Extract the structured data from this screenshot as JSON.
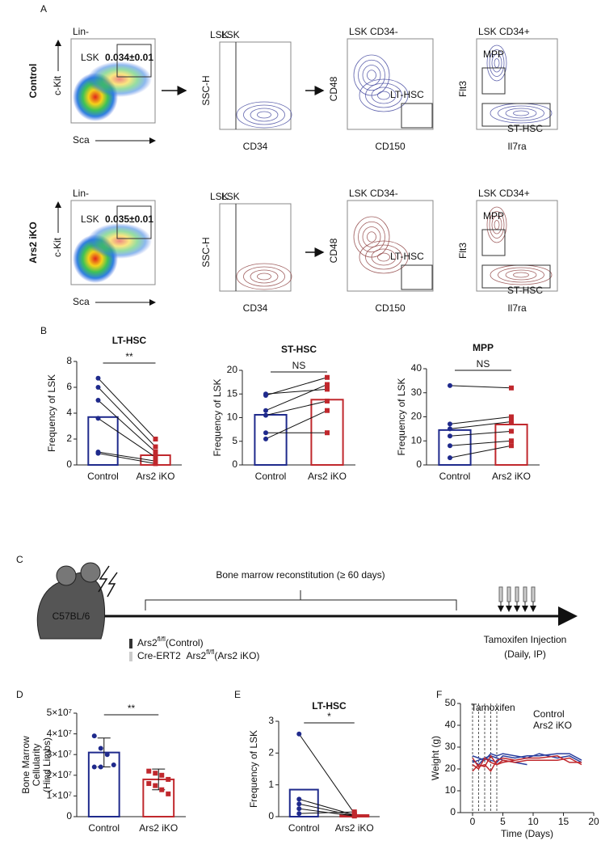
{
  "panel_labels": [
    "A",
    "B",
    "C",
    "D",
    "E",
    "F"
  ],
  "flow": {
    "rows": [
      {
        "label": "Control",
        "plots": [
          {
            "title": "Lin-",
            "gates": [
              "LSK"
            ],
            "frequency": "0.034±0.01",
            "x_label": "Sca",
            "y_label": "c-Kit"
          },
          {
            "title": "LSK",
            "gates": [],
            "x_label": "CD34",
            "y_label": "SSC-H"
          },
          {
            "title": "LSK CD34-",
            "gates": [
              "LT-HSC"
            ],
            "x_label": "CD150",
            "y_label": "CD48"
          },
          {
            "title": "LSK CD34+",
            "gates": [
              "MPP",
              "ST-HSC"
            ],
            "x_label": "Il7ra",
            "y_label": "Flt3"
          }
        ]
      },
      {
        "label": "Ars2 iKO",
        "plots": [
          {
            "title": "Lin-",
            "gates": [
              "LSK"
            ],
            "frequency": "0.035±0.01",
            "x_label": "Sca",
            "y_label": "c-Kit"
          },
          {
            "title": "LSK",
            "gates": [],
            "x_label": "CD34",
            "y_label": "SSC-H"
          },
          {
            "title": "LSK CD34-",
            "gates": [
              "LT-HSC"
            ],
            "x_label": "CD150",
            "y_label": "CD48"
          },
          {
            "title": "LSK CD34+",
            "gates": [
              "MPP",
              "ST-HSC"
            ],
            "x_label": "Il7ra",
            "y_label": "Flt3"
          }
        ]
      }
    ]
  },
  "schematic": {
    "mouse": "C57BL/6",
    "period": "Bone marrow reconstitution (≥ 60 days)",
    "groups": [
      {
        "gene": "Ars2",
        "allele": "fl/fl",
        "label": "(Control)"
      },
      {
        "prefix": "Cre-ERT2",
        "gene": "Ars2",
        "allele": "fl/fl",
        "label": "(Ars2 iKO)"
      }
    ],
    "treatment": [
      "Tamoxifen Injection",
      "(Daily, IP)"
    ]
  },
  "chart_data": [
    {
      "type": "bar",
      "title": "LT-HSC",
      "y_label": [
        "Frequency of LSK"
      ],
      "categories": [
        "Control",
        "Ars2 iKO"
      ],
      "colors": [
        "#1f2a8c",
        "#c0282d"
      ],
      "values": [
        3.7,
        0.75
      ],
      "points": [
        [
          6.7,
          6.0,
          5.0,
          3.6,
          1.0,
          0.9
        ],
        [
          2.0,
          1.4,
          1.0,
          0.6,
          0.3,
          0.1
        ]
      ],
      "paired": true,
      "annotation": "**",
      "ylim": [
        0,
        8
      ],
      "yticks": [
        0,
        2,
        4,
        6,
        8
      ]
    },
    {
      "type": "bar",
      "title": "ST-HSC",
      "y_label": [
        "Frequency of LSK"
      ],
      "categories": [
        "Control",
        "Ars2 iKO"
      ],
      "colors": [
        "#1f2a8c",
        "#c0282d"
      ],
      "values": [
        10.6,
        13.8
      ],
      "points": [
        [
          15.0,
          14.7,
          11.5,
          10.5,
          6.8,
          5.5
        ],
        [
          16.0,
          18.5,
          17.0,
          13.5,
          6.8,
          11.5
        ]
      ],
      "paired": true,
      "annotation": "NS",
      "ylim": [
        0,
        20
      ],
      "yticks": [
        0,
        5,
        10,
        15,
        20
      ]
    },
    {
      "type": "bar",
      "title": "MPP",
      "y_label": [
        "Frequency of LSK"
      ],
      "categories": [
        "Control",
        "Ars2 iKO"
      ],
      "colors": [
        "#1f2a8c",
        "#c0282d"
      ],
      "values": [
        14.5,
        16.8
      ],
      "points": [
        [
          33,
          17,
          15,
          12,
          8,
          3
        ],
        [
          32,
          20,
          18,
          14,
          10,
          8
        ]
      ],
      "paired": true,
      "annotation": "NS",
      "ylim": [
        0,
        40
      ],
      "yticks": [
        0,
        10,
        20,
        30,
        40
      ]
    },
    {
      "type": "bar",
      "y_label": [
        "Bone Marrow",
        "Cellularity",
        "(Hind Limbs)"
      ],
      "categories": [
        "Control",
        "Ars2 iKO"
      ],
      "colors": [
        "#1f2a8c",
        "#c0282d"
      ],
      "values": [
        31000000,
        18000000
      ],
      "errors": [
        7000000,
        5000000
      ],
      "points": [
        [
          39000000,
          33000000,
          30000000,
          25000000,
          24000000,
          24000000
        ],
        [
          22000000,
          21000000,
          20000000,
          18000000,
          16000000,
          15000000,
          13000000,
          11000000
        ]
      ],
      "paired": false,
      "annotation": "**",
      "ylim": [
        0,
        50000000
      ],
      "yticks": [
        {
          "value": 0,
          "label": "0"
        },
        {
          "value": 10000000,
          "label": "1×10⁷"
        },
        {
          "value": 20000000,
          "label": "2×10⁷"
        },
        {
          "value": 30000000,
          "label": "3×10⁷"
        },
        {
          "value": 40000000,
          "label": "4×10⁷"
        },
        {
          "value": 50000000,
          "label": "5×10⁷"
        }
      ]
    },
    {
      "type": "bar",
      "title": "LT-HSC",
      "y_label": [
        "Frequency of LSK"
      ],
      "categories": [
        "Control",
        "Ars2 iKO"
      ],
      "colors": [
        "#1f2a8c",
        "#c0282d"
      ],
      "values": [
        0.85,
        0.05
      ],
      "points": [
        [
          2.6,
          0.55,
          0.4,
          0.25,
          0.1
        ],
        [
          0.1,
          0.05,
          0.03,
          0.02,
          0.15
        ]
      ],
      "paired": true,
      "annotation": "*",
      "ylim": [
        0,
        3
      ],
      "yticks": [
        0,
        1,
        2,
        3
      ]
    },
    {
      "type": "line",
      "x_label": "Time (Days)",
      "y_label": [
        "Weight (g)"
      ],
      "xlim": [
        -2,
        20
      ],
      "xticks": [
        0,
        5,
        10,
        15,
        20
      ],
      "ylim": [
        0,
        50
      ],
      "yticks": [
        0,
        10,
        20,
        30,
        40,
        50
      ],
      "markers": {
        "label": "Tamoxifen",
        "x": [
          0,
          1,
          2,
          3,
          4
        ]
      },
      "series": [
        {
          "name": "Control",
          "color": "#2b3f9e",
          "lines": [
            {
              "x": [
                0,
                1,
                2,
                3,
                4,
                5,
                7,
                9,
                11,
                14,
                16,
                18
              ],
              "values": [
                24,
                22,
                25,
                24,
                23,
                26,
                25,
                26,
                26,
                27,
                27,
                24
              ]
            },
            {
              "x": [
                0,
                1,
                2,
                3,
                4,
                5,
                7,
                9,
                11,
                14,
                16,
                18
              ],
              "values": [
                26,
                25,
                24,
                27,
                26,
                27,
                26,
                25,
                27,
                25,
                26,
                23
              ]
            },
            {
              "x": [
                0,
                1,
                2,
                3,
                4,
                5,
                7,
                9
              ],
              "values": [
                23,
                24,
                25,
                26,
                25,
                24,
                23,
                22
              ]
            }
          ]
        },
        {
          "name": "Ars2 iKO",
          "color": "#c0282d",
          "lines": [
            {
              "x": [
                0,
                1,
                2,
                3,
                4,
                5,
                7,
                9,
                11,
                14,
                16,
                18
              ],
              "values": [
                25,
                21,
                22,
                19,
                24,
                25,
                24,
                25,
                25,
                26,
                23,
                23
              ]
            },
            {
              "x": [
                0,
                1,
                2,
                3,
                4,
                5,
                7,
                9,
                11,
                14,
                16,
                18
              ],
              "values": [
                22,
                20,
                25,
                23,
                22,
                24,
                23,
                24,
                24,
                24,
                25,
                22
              ]
            },
            {
              "x": [
                0,
                1,
                2,
                3,
                4,
                5,
                7
              ],
              "values": [
                19,
                22,
                21,
                26,
                22,
                23,
                24
              ]
            }
          ]
        }
      ]
    }
  ]
}
